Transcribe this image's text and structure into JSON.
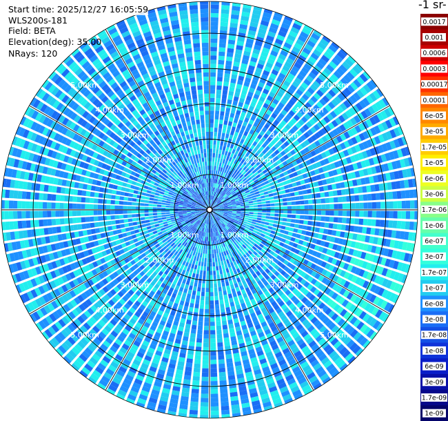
{
  "info": {
    "start_time": "Start time: 2025/12/27 16:05:59",
    "device": "WLS200s-181",
    "field": "Field: BETA",
    "elevation": "Elevation(deg): 35.00",
    "nrays": "NRays: 120"
  },
  "colorbar": {
    "unit_title": "-1 sr-",
    "labels": [
      "0.0017",
      "0.001",
      "0.0006",
      "0.0003",
      "0.00017",
      "0.0001",
      "6e-05",
      "3e-05",
      "1.7e-05",
      "1e-05",
      "6e-06",
      "3e-06",
      "1.7e-06",
      "1e-06",
      "6e-07",
      "3e-07",
      "1.7e-07",
      "1e-07",
      "6e-08",
      "3e-08",
      "1.7e-08",
      "1e-08",
      "6e-09",
      "3e-09",
      "1.7e-09",
      "1e-09"
    ],
    "colors": [
      "#8b0000",
      "#a80000",
      "#cc0000",
      "#ff0000",
      "#ff3300",
      "#ff6600",
      "#ff8800",
      "#ffaa00",
      "#ffcc00",
      "#ffee00",
      "#eeff22",
      "#ccff44",
      "#88ff88",
      "#66ffaa",
      "#44ffcc",
      "#33ffdd",
      "#22eeee",
      "#22ccf0",
      "#1e90ff",
      "#1a6ef5",
      "#1450e6",
      "#0f33d9",
      "#0a1ec8",
      "#0810a8",
      "#06088a",
      "#04046a"
    ]
  },
  "chart_data": {
    "type": "heatmap",
    "projection": "polar-ppi",
    "field": "BETA",
    "elevation_deg": 35.0,
    "n_rays": 120,
    "range_rings_km": [
      1,
      2,
      3,
      4,
      5
    ],
    "ring_labels": [
      "1.00km",
      "2.00km",
      "3.00km",
      "4.00km",
      "5.00km"
    ],
    "max_range_km": 5.9,
    "color_scale": "log",
    "value_range": [
      1e-09,
      0.0017
    ],
    "typical_value": 6e-08,
    "regions": [
      {
        "sector": "east-southeast",
        "range_km": [
          4.0,
          5.9
        ],
        "value": 1.7e-07
      },
      {
        "sector": "near-center",
        "range_km": [
          0.0,
          1.0
        ],
        "value": 1.7e-08
      }
    ]
  }
}
